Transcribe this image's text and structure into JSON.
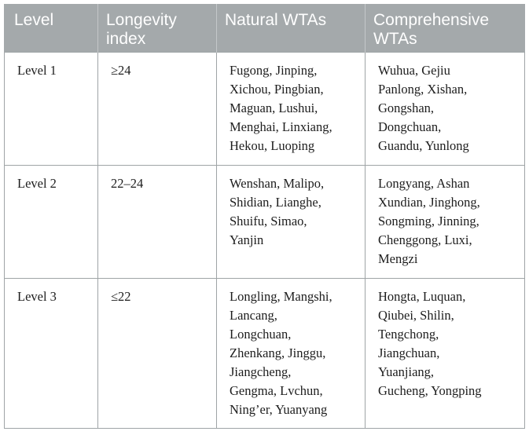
{
  "table": {
    "headers": [
      [
        "Level"
      ],
      [
        "Longevity",
        "index"
      ],
      [
        "Natural WTAs"
      ],
      [
        "Comprehensive",
        "WTAs"
      ]
    ],
    "rows": [
      {
        "level": "Level 1",
        "index": "≥24",
        "natural": [
          "Fugong, Jinping,",
          "Xichou, Pingbian,",
          "Maguan, Lushui,",
          "Menghai, Linxiang,",
          "Hekou, Luoping"
        ],
        "comprehensive": [
          "Wuhua, Gejiu",
          "Panlong, Xishan,",
          "Gongshan,",
          "Dongchuan,",
          "Guandu, Yunlong"
        ]
      },
      {
        "level": "Level 2",
        "index": "22–24",
        "natural": [
          "Wenshan, Malipo,",
          "Shidian, Lianghe,",
          "Shuifu, Simao,",
          "Yanjin"
        ],
        "comprehensive": [
          "Longyang, Ashan",
          "Xundian, Jinghong,",
          "Songming, Jinning,",
          "Chenggong, Luxi,",
          "Mengzi"
        ]
      },
      {
        "level": "Level 3",
        "index": "≤22",
        "natural": [
          "Longling, Mangshi,",
          "Lancang,",
          "Longchuan,",
          "Zhenkang, Jinggu,",
          "Jiangcheng,",
          "Gengma, Lvchun,",
          "Ning’er, Yuanyang"
        ],
        "comprehensive": [
          "Hongta, Luquan,",
          "Qiubei, Shilin,",
          "Tengchong,",
          "Jiangchuan,",
          "Yuanjiang,",
          "Gucheng, Yongping"
        ]
      }
    ]
  }
}
